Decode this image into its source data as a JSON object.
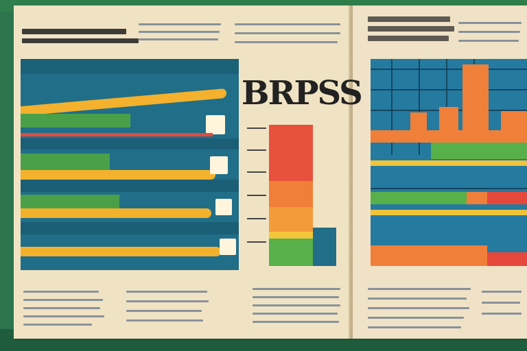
{
  "title": "BRPSS",
  "colors": {
    "background": "#2f7d4a",
    "paper": "#efe1c2",
    "blue": "#216e88",
    "orange": "#f07f39",
    "yellow": "#f0c43a",
    "green": "#58b04a",
    "red": "#e6473b"
  }
}
